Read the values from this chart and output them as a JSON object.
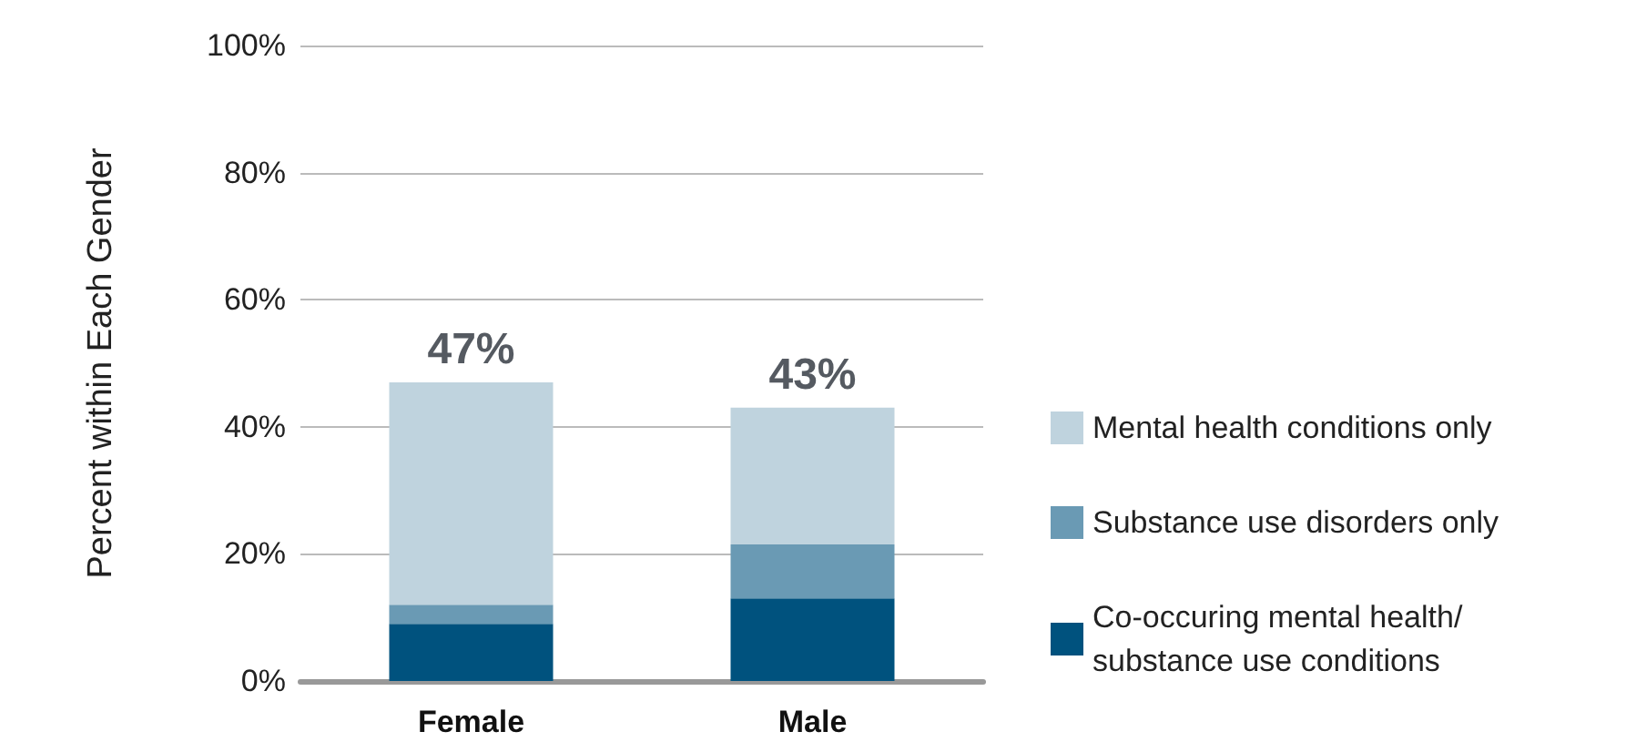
{
  "chart_data": {
    "type": "bar",
    "stacked": true,
    "categories": [
      "Female",
      "Male"
    ],
    "ylabel": "Percent within Each Gender",
    "ylim": [
      0,
      100
    ],
    "yticks": [
      {
        "value": 0,
        "label": "0%"
      },
      {
        "value": 20,
        "label": "20%"
      },
      {
        "value": 40,
        "label": "40%"
      },
      {
        "value": 60,
        "label": "60%"
      },
      {
        "value": 80,
        "label": "80%"
      },
      {
        "value": 100,
        "label": "100%"
      }
    ],
    "grid": "y",
    "legend": "right",
    "totals": [
      "47%",
      "43%"
    ],
    "series": [
      {
        "name": "Co-occuring mental health/ substance use conditions",
        "color": "#00527e",
        "values": [
          9,
          13
        ]
      },
      {
        "name": "Substance use disorders only",
        "color": "#6a9ab4",
        "values": [
          3,
          8.5
        ]
      },
      {
        "name": "Mental health conditions only",
        "color": "#bfd3de",
        "values": [
          35,
          21.5
        ]
      }
    ]
  }
}
